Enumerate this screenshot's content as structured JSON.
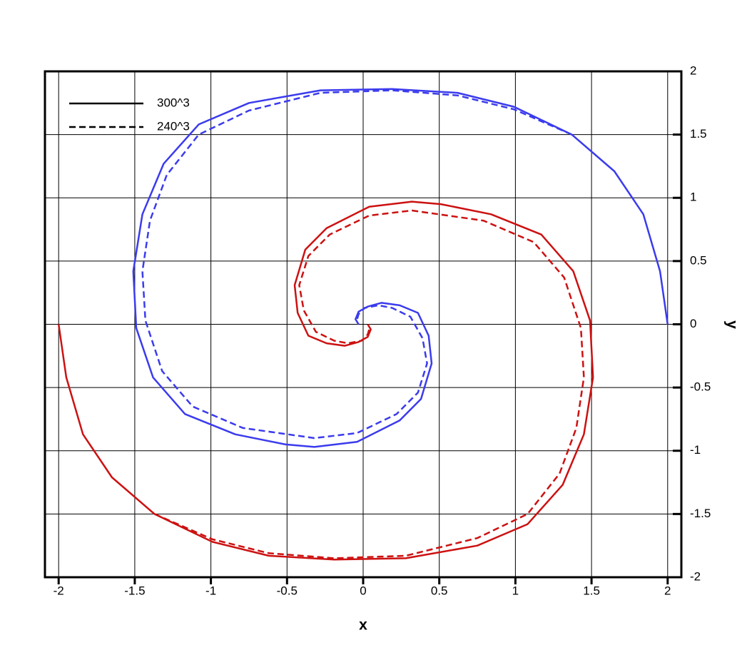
{
  "chart_data": {
    "type": "line",
    "x_label": "x",
    "y_label": "y",
    "xlim": [
      -2.09,
      2.09
    ],
    "ylim": [
      -2,
      2
    ],
    "xticks": [
      -2,
      -1.5,
      -1,
      -0.5,
      0,
      0.5,
      1,
      1.5,
      2
    ],
    "yticks": [
      -2,
      -1.5,
      -1,
      -0.5,
      0,
      0.5,
      1,
      1.5,
      2
    ],
    "grid": true,
    "y_axis_side": "right",
    "legend_position": "upper-left",
    "legend": [
      {
        "name": "300^3",
        "style": "solid",
        "color": "#000000"
      },
      {
        "name": "240^3",
        "style": "dashed",
        "color": "#000000"
      }
    ],
    "series": [
      {
        "color": "#3b3bee",
        "style": "solid",
        "x": [
          2,
          1.95,
          1.84,
          1.65,
          1.37,
          0.99,
          0.62,
          0.19,
          -0.28,
          -0.75,
          -1.08,
          -1.31,
          -1.45,
          -1.51,
          -1.49,
          -1.38,
          -1.17,
          -0.84,
          -0.51,
          -0.32,
          -0.04,
          0.24,
          0.38,
          0.45,
          0.43,
          0.36,
          0.24,
          0.12,
          0.03,
          -0.03,
          -0.05,
          -0.03
        ],
        "y": [
          0,
          0.42,
          0.87,
          1.21,
          1.5,
          1.72,
          1.83,
          1.86,
          1.85,
          1.75,
          1.58,
          1.27,
          0.87,
          0.42,
          -0.03,
          -0.42,
          -0.71,
          -0.87,
          -0.95,
          -0.97,
          -0.93,
          -0.76,
          -0.59,
          -0.31,
          -0.09,
          0.09,
          0.15,
          0.17,
          0.14,
          0.1,
          0.04,
          0
        ]
      },
      {
        "color": "#3b3bee",
        "style": "dashed",
        "x": [
          1.37,
          0.99,
          0.62,
          0.19,
          -0.28,
          -0.75,
          -1.08,
          -1.29,
          -1.4,
          -1.45,
          -1.43,
          -1.32,
          -1.12,
          -0.79,
          -0.32,
          -0.04,
          0.22,
          0.36,
          0.42,
          0.39,
          0.31,
          0.19,
          0.1,
          0.01,
          -0.03,
          -0.04
        ],
        "y": [
          1.5,
          1.7,
          1.81,
          1.85,
          1.83,
          1.69,
          1.5,
          1.18,
          0.82,
          0.42,
          0.03,
          -0.37,
          -0.65,
          -0.82,
          -0.9,
          -0.86,
          -0.71,
          -0.54,
          -0.31,
          -0.11,
          0.06,
          0.13,
          0.15,
          0.13,
          0.08,
          0.04
        ]
      },
      {
        "color": "#cc1111",
        "style": "solid",
        "x": [
          -2,
          -1.95,
          -1.84,
          -1.65,
          -1.37,
          -0.99,
          -0.62,
          -0.19,
          0.28,
          0.75,
          1.08,
          1.31,
          1.45,
          1.51,
          1.49,
          1.38,
          1.17,
          0.84,
          0.51,
          0.32,
          0.04,
          -0.24,
          -0.38,
          -0.45,
          -0.43,
          -0.36,
          -0.24,
          -0.12,
          -0.03,
          0.03,
          0.05,
          0.03
        ],
        "y": [
          0,
          -0.42,
          -0.87,
          -1.21,
          -1.5,
          -1.72,
          -1.83,
          -1.86,
          -1.85,
          -1.75,
          -1.58,
          -1.27,
          -0.87,
          -0.42,
          0.03,
          0.42,
          0.71,
          0.87,
          0.95,
          0.97,
          0.93,
          0.76,
          0.59,
          0.31,
          0.09,
          -0.09,
          -0.15,
          -0.17,
          -0.14,
          -0.1,
          -0.04,
          0
        ]
      },
      {
        "color": "#cc1111",
        "style": "dashed",
        "x": [
          -1.37,
          -0.99,
          -0.62,
          -0.19,
          0.28,
          0.75,
          1.08,
          1.29,
          1.4,
          1.45,
          1.43,
          1.32,
          1.12,
          0.79,
          0.32,
          0.04,
          -0.22,
          -0.36,
          -0.42,
          -0.39,
          -0.31,
          -0.19,
          -0.1,
          -0.01,
          0.03,
          0.04
        ],
        "y": [
          -1.5,
          -1.7,
          -1.81,
          -1.85,
          -1.83,
          -1.69,
          -1.5,
          -1.18,
          -0.82,
          -0.42,
          -0.03,
          0.37,
          0.65,
          0.82,
          0.9,
          0.86,
          0.71,
          0.54,
          0.31,
          0.11,
          -0.06,
          -0.13,
          -0.15,
          -0.13,
          -0.08,
          -0.04
        ]
      }
    ]
  }
}
